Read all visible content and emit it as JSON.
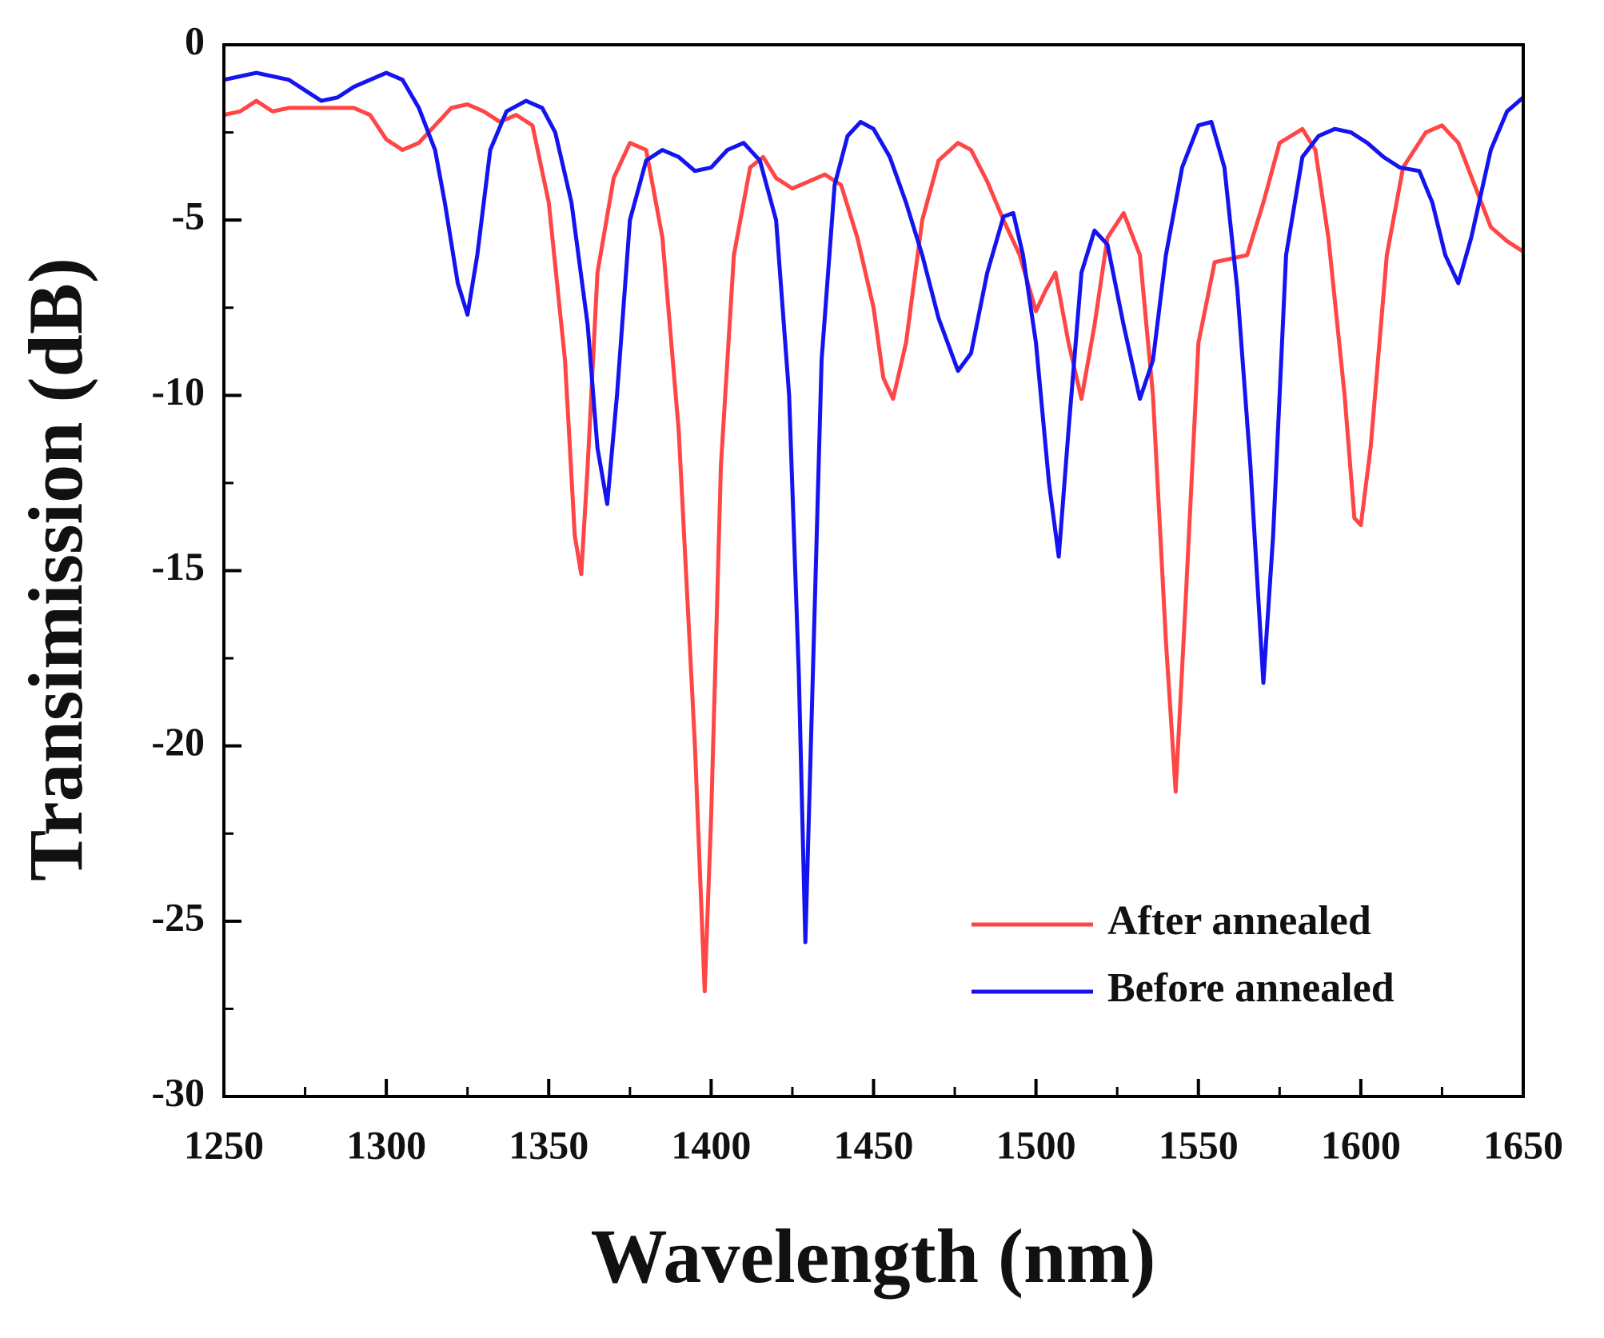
{
  "chart_data": {
    "type": "line",
    "xlabel": "Wavelength (nm)",
    "ylabel": "Transimission (dB)",
    "xlim": [
      1250,
      1650
    ],
    "ylim": [
      -30,
      0
    ],
    "xticks": [
      1250,
      1300,
      1350,
      1400,
      1450,
      1500,
      1550,
      1600,
      1650
    ],
    "yticks": [
      0,
      -5,
      -10,
      -15,
      -20,
      -25,
      -30
    ],
    "xminorticks": [
      1275,
      1325,
      1375,
      1425,
      1475,
      1525,
      1575,
      1625
    ],
    "yminorticks": [
      -2.5,
      -7.5,
      -12.5,
      -17.5,
      -22.5,
      -27.5
    ],
    "legend": "lower right",
    "series": [
      {
        "name": "After annealed",
        "color": "#ff4646",
        "x": [
          1250,
          1255,
          1260,
          1265,
          1270,
          1280,
          1290,
          1295,
          1300,
          1305,
          1310,
          1315,
          1320,
          1325,
          1330,
          1335,
          1340,
          1345,
          1350,
          1355,
          1358,
          1360,
          1362,
          1365,
          1370,
          1375,
          1380,
          1385,
          1390,
          1395,
          1398,
          1400,
          1403,
          1407,
          1412,
          1416,
          1420,
          1425,
          1430,
          1435,
          1440,
          1445,
          1450,
          1453,
          1456,
          1460,
          1465,
          1470,
          1476,
          1480,
          1485,
          1490,
          1495,
          1500,
          1503,
          1506,
          1510,
          1514,
          1518,
          1522,
          1527,
          1532,
          1536,
          1540,
          1543,
          1546,
          1550,
          1555,
          1560,
          1565,
          1570,
          1575,
          1582,
          1586,
          1590,
          1595,
          1598,
          1600,
          1603,
          1608,
          1613,
          1620,
          1625,
          1630,
          1635,
          1640,
          1645,
          1650
        ],
        "values": [
          -2.0,
          -1.9,
          -1.6,
          -1.9,
          -1.8,
          -1.8,
          -1.8,
          -2.0,
          -2.7,
          -3.0,
          -2.8,
          -2.3,
          -1.8,
          -1.7,
          -1.9,
          -2.2,
          -2.0,
          -2.3,
          -4.5,
          -9,
          -14,
          -15.1,
          -12,
          -6.5,
          -3.8,
          -2.8,
          -3.0,
          -5.5,
          -11,
          -20,
          -27.0,
          -22,
          -12,
          -6,
          -3.5,
          -3.2,
          -3.8,
          -4.1,
          -3.9,
          -3.7,
          -4.0,
          -5.5,
          -7.5,
          -9.5,
          -10.1,
          -8.5,
          -5,
          -3.3,
          -2.8,
          -3.0,
          -3.9,
          -5.0,
          -6.0,
          -7.6,
          -7.0,
          -6.5,
          -8.5,
          -10.1,
          -8,
          -5.5,
          -4.8,
          -6.0,
          -10,
          -17,
          -21.3,
          -16,
          -8.5,
          -6.2,
          -6.1,
          -6.0,
          -4.5,
          -2.8,
          -2.4,
          -3.0,
          -5.5,
          -10,
          -13.5,
          -13.7,
          -11.5,
          -6,
          -3.5,
          -2.5,
          -2.3,
          -2.8,
          -4,
          -5.2,
          -5.6,
          -5.9
        ]
      },
      {
        "name": "Before annealed",
        "color": "#1414f0",
        "x": [
          1250,
          1255,
          1260,
          1265,
          1270,
          1275,
          1280,
          1285,
          1290,
          1295,
          1300,
          1305,
          1310,
          1315,
          1318,
          1322,
          1325,
          1328,
          1332,
          1337,
          1343,
          1348,
          1352,
          1357,
          1362,
          1365,
          1368,
          1371,
          1375,
          1380,
          1385,
          1390,
          1395,
          1400,
          1405,
          1410,
          1415,
          1420,
          1424,
          1427,
          1429,
          1431,
          1434,
          1438,
          1442,
          1446,
          1450,
          1455,
          1460,
          1465,
          1470,
          1476,
          1480,
          1485,
          1490,
          1493,
          1496,
          1500,
          1504,
          1507,
          1510,
          1514,
          1518,
          1522,
          1527,
          1532,
          1536,
          1540,
          1545,
          1550,
          1554,
          1558,
          1562,
          1566,
          1570,
          1573,
          1577,
          1582,
          1587,
          1592,
          1597,
          1602,
          1607,
          1612,
          1618,
          1622,
          1626,
          1630,
          1634,
          1640,
          1645,
          1650
        ],
        "values": [
          -1.0,
          -0.9,
          -0.8,
          -0.9,
          -1.0,
          -1.3,
          -1.6,
          -1.5,
          -1.2,
          -1.0,
          -0.8,
          -1.0,
          -1.8,
          -3.0,
          -4.5,
          -6.8,
          -7.7,
          -6.0,
          -3.0,
          -1.9,
          -1.6,
          -1.8,
          -2.5,
          -4.5,
          -8,
          -11.5,
          -13.1,
          -10,
          -5,
          -3.3,
          -3.0,
          -3.2,
          -3.6,
          -3.5,
          -3.0,
          -2.8,
          -3.3,
          -5.0,
          -10,
          -18,
          -25.6,
          -19,
          -9,
          -4,
          -2.6,
          -2.2,
          -2.4,
          -3.2,
          -4.5,
          -6.0,
          -7.8,
          -9.3,
          -8.8,
          -6.5,
          -4.9,
          -4.8,
          -6,
          -8.5,
          -12.5,
          -14.6,
          -11,
          -6.5,
          -5.3,
          -5.7,
          -8,
          -10.1,
          -9,
          -6,
          -3.5,
          -2.3,
          -2.2,
          -3.5,
          -7,
          -12,
          -18.2,
          -14,
          -6,
          -3.2,
          -2.6,
          -2.4,
          -2.5,
          -2.8,
          -3.2,
          -3.5,
          -3.6,
          -4.5,
          -6,
          -6.8,
          -5.5,
          -3,
          -1.9,
          -1.5
        ]
      }
    ]
  }
}
